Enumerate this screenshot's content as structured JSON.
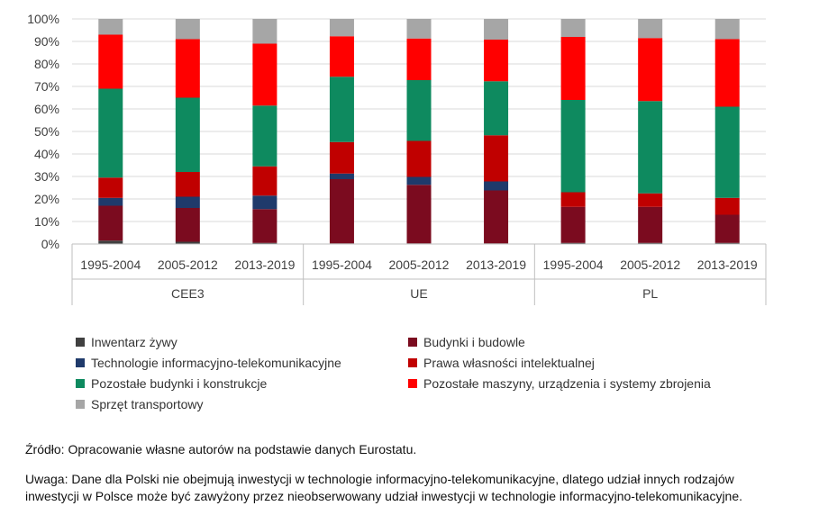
{
  "chart_data": {
    "type": "bar",
    "stacked": true,
    "percent": true,
    "ylim": [
      0,
      100
    ],
    "yticks": [
      "0%",
      "10%",
      "20%",
      "30%",
      "40%",
      "50%",
      "60%",
      "70%",
      "80%",
      "90%",
      "100%"
    ],
    "categories": [
      "1995-2004",
      "2005-2012",
      "2013-2019",
      "1995-2004",
      "2005-2012",
      "2013-2019",
      "1995-2004",
      "2005-2012",
      "2013-2019"
    ],
    "groups": [
      {
        "label": "CEE3",
        "count": 3
      },
      {
        "label": "UE",
        "count": 3
      },
      {
        "label": "PL",
        "count": 3
      }
    ],
    "grid": true,
    "legend_position": "bottom",
    "series": [
      {
        "name": "Inwentarz żywy",
        "color": "#404040",
        "values": [
          1.5,
          1.0,
          0.5,
          0.3,
          0.3,
          0.3,
          0.5,
          0.5,
          0.5
        ]
      },
      {
        "name": "Budynki i budowle",
        "color": "#7b0b1f",
        "values": [
          15.5,
          15.0,
          15.0,
          28.5,
          26.0,
          23.5,
          16.0,
          16.0,
          12.5
        ]
      },
      {
        "name": "Technologie informacyjno-telekomunikacyjne",
        "color": "#1f3a6b",
        "values": [
          3.5,
          5.0,
          6.0,
          2.5,
          3.5,
          4.0,
          0,
          0,
          0
        ]
      },
      {
        "name": "Prawa własności intelektualnej",
        "color": "#c00000",
        "values": [
          9.0,
          11.0,
          13.0,
          14.0,
          16.0,
          20.5,
          6.5,
          6.0,
          7.5
        ]
      },
      {
        "name": "Pozostałe budynki i konstrukcje",
        "color": "#0e8a5f",
        "values": [
          39.5,
          33.0,
          27.0,
          29.0,
          27.0,
          24.0,
          41.0,
          41.0,
          40.5
        ]
      },
      {
        "name": "Pozostałe maszyny, urządzenia i systemy zbrojenia",
        "color": "#ff0000",
        "values": [
          24.0,
          26.0,
          27.5,
          18.0,
          18.5,
          18.5,
          28.0,
          28.0,
          30.0
        ]
      },
      {
        "name": "Sprzęt transportowy",
        "color": "#a6a6a6",
        "values": [
          7.0,
          9.0,
          11.0,
          7.7,
          8.7,
          9.2,
          8.0,
          8.5,
          9.0
        ]
      }
    ]
  },
  "source": "Źródło: Opracowanie własne autorów na podstawie danych Eurostatu.",
  "note": "Uwaga: Dane dla Polski nie obejmują inwestycji w technologie informacyjno-telekomunikacyjne, dlatego udział innych rodzajów inwestycji w Polsce może być zawyżony przez nieobserwowany udział inwestycji w technologie informacyjno-telekomunikacyjne."
}
